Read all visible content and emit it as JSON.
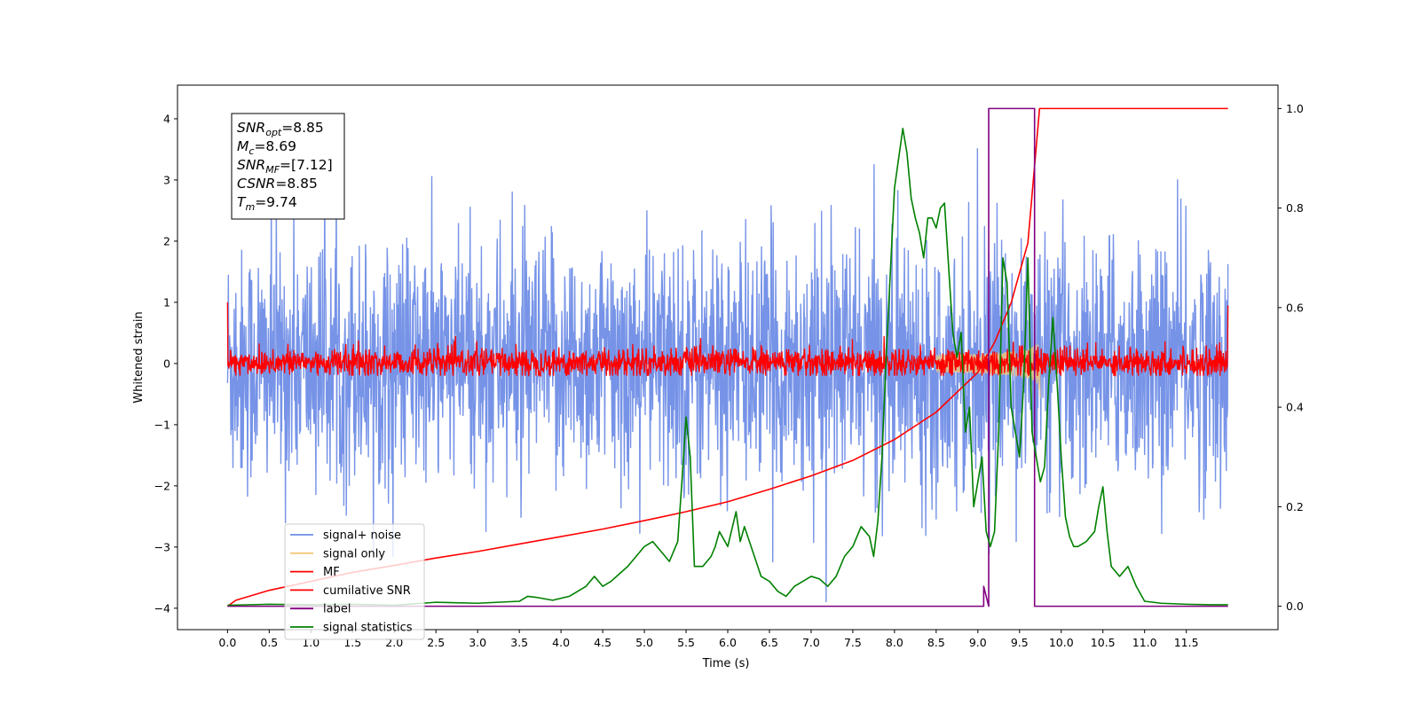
{
  "chart_data": {
    "type": "line",
    "xlabel": "Time (s)",
    "ylabel": "Whitened strain",
    "xlim": [
      -0.6,
      12.6
    ],
    "ylim": [
      -4.35,
      4.55
    ],
    "y2lim": [
      -0.047,
      1.047
    ],
    "x_ticks": [
      "0.0",
      "0.5",
      "1.0",
      "1.5",
      "2.0",
      "2.5",
      "3.0",
      "3.5",
      "4.0",
      "4.5",
      "5.0",
      "5.5",
      "6.0",
      "6.5",
      "7.0",
      "7.5",
      "8.0",
      "8.5",
      "9.0",
      "9.5",
      "10.0",
      "10.5",
      "11.0",
      "11.5"
    ],
    "y_ticks": [
      "4",
      "3",
      "2",
      "1",
      "0",
      "−1",
      "−2",
      "−3",
      "−4"
    ],
    "y2_ticks": [
      "1.0",
      "0.8",
      "0.6",
      "0.4",
      "0.2",
      "0.0"
    ],
    "annotation": {
      "lines": [
        {
          "base": "SNR",
          "sub": "opt",
          "value": "=8.85"
        },
        {
          "base": "M",
          "sub": "c",
          "value": "=8.69"
        },
        {
          "base": "SNR",
          "sub": "MF",
          "value": "=[7.12]"
        },
        {
          "base": "CSNR",
          "sub": "",
          "value": "=8.85"
        },
        {
          "base": "T",
          "sub": "m",
          "value": "=9.74"
        }
      ]
    },
    "legend": {
      "position": "lower-left",
      "entries": [
        {
          "label": "signal+ noise",
          "color": "#6f8de6"
        },
        {
          "label": "signal only",
          "color": "#f5c87a"
        },
        {
          "label": "MF",
          "color": "#ff0000"
        },
        {
          "label": "cumilative SNR",
          "color": "#ff0000"
        },
        {
          "label": "label",
          "color": "#800080"
        },
        {
          "label": "signal statistics",
          "color": "#008000"
        }
      ]
    },
    "series": [
      {
        "name": "signal+ noise",
        "axis": "left",
        "color": "#6f8de6",
        "noise": {
          "t_start": 0.0,
          "t_end": 12.0,
          "samples": 2400,
          "amplitude_sigma": 1.0,
          "peak_range": [
            -3.9,
            4.1
          ]
        }
      },
      {
        "name": "signal only",
        "axis": "left",
        "color": "#f5c87a",
        "chirp": {
          "t_start": 8.5,
          "t_end": 9.75,
          "peak_amplitude": 1.3
        }
      },
      {
        "name": "MF",
        "axis": "left",
        "color": "#ff0000",
        "noise": {
          "t_start": 0.0,
          "t_end": 12.0,
          "samples": 2400,
          "amplitude_sigma": 0.12,
          "peak_range": [
            -0.2,
            0.45
          ]
        },
        "endpoints": [
          1.0,
          0.95
        ]
      },
      {
        "name": "cumilative SNR",
        "axis": "right",
        "color": "#ff0000",
        "x": [
          0.0,
          0.1,
          0.5,
          1.0,
          1.5,
          2.0,
          2.5,
          3.0,
          3.5,
          4.0,
          4.5,
          5.0,
          5.5,
          6.0,
          6.5,
          7.0,
          7.5,
          8.0,
          8.5,
          9.0,
          9.2,
          9.4,
          9.6,
          9.74,
          12.0
        ],
        "values": [
          0.0,
          0.012,
          0.032,
          0.05,
          0.068,
          0.082,
          0.097,
          0.11,
          0.125,
          0.14,
          0.155,
          0.172,
          0.19,
          0.21,
          0.235,
          0.262,
          0.293,
          0.335,
          0.39,
          0.47,
          0.53,
          0.61,
          0.73,
          1.0,
          1.0
        ]
      },
      {
        "name": "label",
        "axis": "right",
        "color": "#800080",
        "x": [
          0.0,
          9.07,
          9.07,
          9.13,
          9.13,
          9.68,
          9.68,
          9.75,
          9.75,
          12.0
        ],
        "values": [
          0.0,
          0.0,
          0.04,
          0.0,
          1.0,
          1.0,
          0.0,
          0.0,
          0.0,
          0.0
        ]
      },
      {
        "name": "signal statistics",
        "axis": "right",
        "color": "#008000",
        "x": [
          0.0,
          0.5,
          1.0,
          1.5,
          2.0,
          2.5,
          3.0,
          3.5,
          3.6,
          3.7,
          3.9,
          4.1,
          4.3,
          4.4,
          4.5,
          4.6,
          4.7,
          4.8,
          4.9,
          5.0,
          5.1,
          5.2,
          5.3,
          5.4,
          5.45,
          5.5,
          5.55,
          5.6,
          5.7,
          5.8,
          5.85,
          5.9,
          6.0,
          6.1,
          6.15,
          6.2,
          6.3,
          6.4,
          6.5,
          6.6,
          6.7,
          6.8,
          6.9,
          7.0,
          7.1,
          7.2,
          7.3,
          7.4,
          7.5,
          7.6,
          7.7,
          7.75,
          7.8,
          7.85,
          7.9,
          8.0,
          8.05,
          8.1,
          8.15,
          8.2,
          8.25,
          8.3,
          8.35,
          8.4,
          8.45,
          8.5,
          8.55,
          8.6,
          8.65,
          8.7,
          8.75,
          8.8,
          8.85,
          8.9,
          8.95,
          9.0,
          9.05,
          9.1,
          9.15,
          9.2,
          9.25,
          9.3,
          9.35,
          9.4,
          9.45,
          9.5,
          9.55,
          9.6,
          9.65,
          9.7,
          9.75,
          9.8,
          9.85,
          9.9,
          9.95,
          10.0,
          10.05,
          10.1,
          10.15,
          10.2,
          10.3,
          10.4,
          10.45,
          10.5,
          10.55,
          10.6,
          10.7,
          10.8,
          10.9,
          11.0,
          11.2,
          11.5,
          11.8,
          12.0
        ],
        "values": [
          0.002,
          0.004,
          0.003,
          0.004,
          0.002,
          0.008,
          0.006,
          0.01,
          0.02,
          0.018,
          0.012,
          0.02,
          0.04,
          0.06,
          0.04,
          0.05,
          0.065,
          0.08,
          0.1,
          0.12,
          0.13,
          0.11,
          0.09,
          0.13,
          0.25,
          0.38,
          0.3,
          0.08,
          0.08,
          0.1,
          0.12,
          0.15,
          0.12,
          0.19,
          0.13,
          0.16,
          0.11,
          0.06,
          0.05,
          0.03,
          0.02,
          0.04,
          0.05,
          0.06,
          0.055,
          0.04,
          0.06,
          0.1,
          0.12,
          0.16,
          0.14,
          0.1,
          0.17,
          0.3,
          0.5,
          0.84,
          0.9,
          0.96,
          0.91,
          0.82,
          0.78,
          0.75,
          0.7,
          0.78,
          0.78,
          0.76,
          0.8,
          0.81,
          0.68,
          0.55,
          0.5,
          0.55,
          0.35,
          0.4,
          0.2,
          0.25,
          0.3,
          0.15,
          0.12,
          0.15,
          0.35,
          0.7,
          0.65,
          0.4,
          0.35,
          0.3,
          0.45,
          0.7,
          0.35,
          0.3,
          0.25,
          0.28,
          0.45,
          0.58,
          0.45,
          0.3,
          0.18,
          0.14,
          0.12,
          0.12,
          0.13,
          0.15,
          0.2,
          0.24,
          0.15,
          0.08,
          0.06,
          0.08,
          0.04,
          0.01,
          0.006,
          0.004,
          0.003,
          0.003
        ]
      }
    ]
  }
}
